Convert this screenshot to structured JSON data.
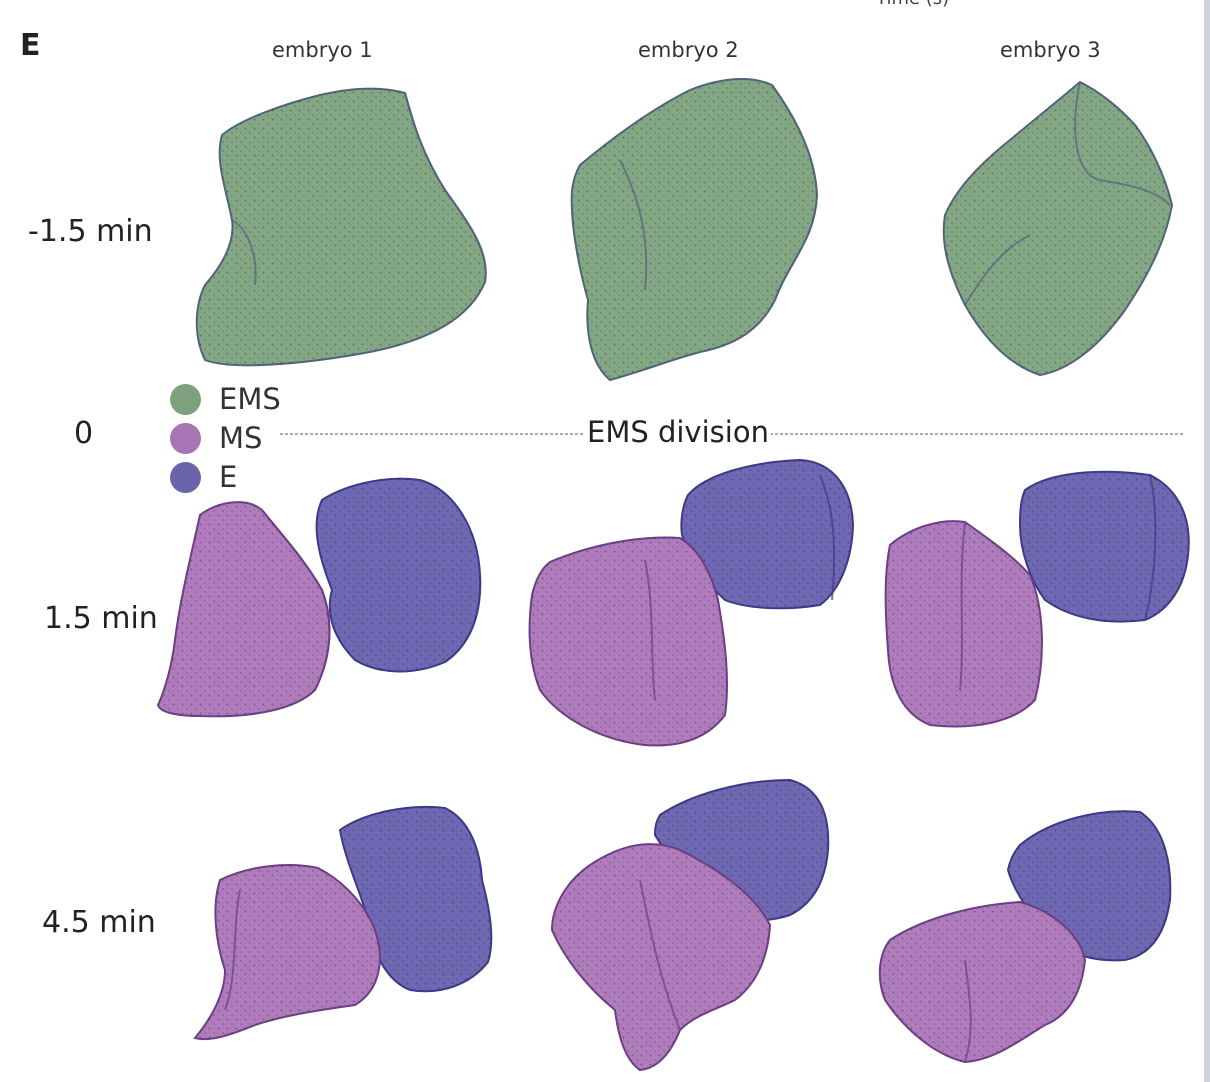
{
  "panel_letter": "E",
  "clipped_header": "Time (s)",
  "columns": [
    "embryo 1",
    "embryo 2",
    "embryo 3"
  ],
  "rows": [
    "-1.5 min",
    "0",
    "1.5 min",
    "4.5 min"
  ],
  "division_label": "EMS division",
  "legend": [
    {
      "label": "EMS",
      "color": "#7da17d"
    },
    {
      "label": "MS",
      "color": "#a874b3"
    },
    {
      "label": "E",
      "color": "#6a65aa"
    }
  ],
  "cell_colors": {
    "EMS": "#84a884",
    "EMS_dark": "#52647a",
    "MS": "#b07cbc",
    "MS_dark": "#6c3f86",
    "E": "#6f69b4",
    "E_dark": "#3d3a86"
  }
}
